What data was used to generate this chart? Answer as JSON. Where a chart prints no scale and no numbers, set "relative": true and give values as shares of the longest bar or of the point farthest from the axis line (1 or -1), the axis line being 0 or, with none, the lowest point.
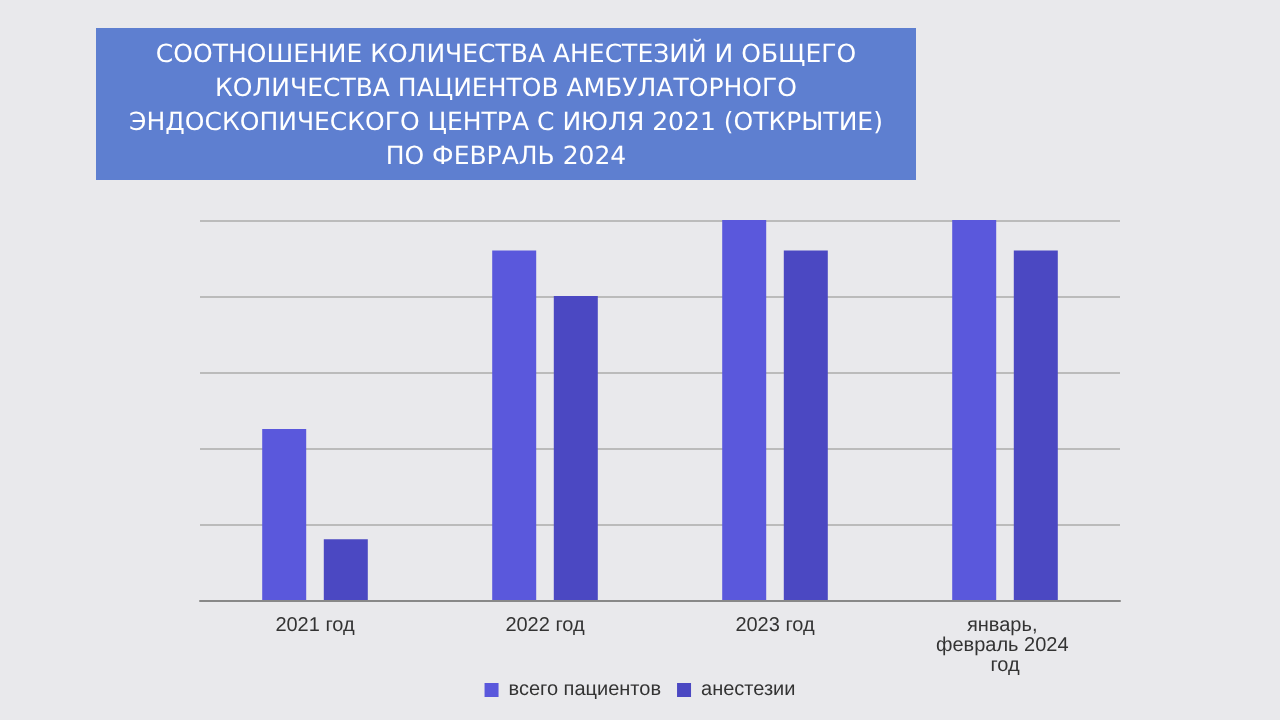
{
  "chart_data": {
    "type": "bar",
    "title": "СООТНОШЕНИЕ КОЛИЧЕСТВА АНЕСТЕЗИЙ И ОБЩЕГО КОЛИЧЕСТВА ПАЦИЕНТОВ АМБУЛАТОРНОГО ЭНДОСКОПИЧЕСКОГО ЦЕНТРА С ИЮЛЯ 2021 (ОТКРЫТИЕ) ПО ФЕВРАЛЬ 2024",
    "categories": [
      "2021 год",
      "2022 год",
      "2023 год",
      "январь, февраль 2024 год"
    ],
    "relative": true,
    "series": [
      {
        "name": "всего пациентов",
        "color": "#5a58dc",
        "values": [
          0.45,
          0.92,
          1,
          1
        ]
      },
      {
        "name": "анестезии",
        "color": "#4b48c2",
        "values": [
          0.16,
          0.8,
          0.92,
          0.92
        ]
      }
    ],
    "grid": "y",
    "legend": "bottom"
  }
}
